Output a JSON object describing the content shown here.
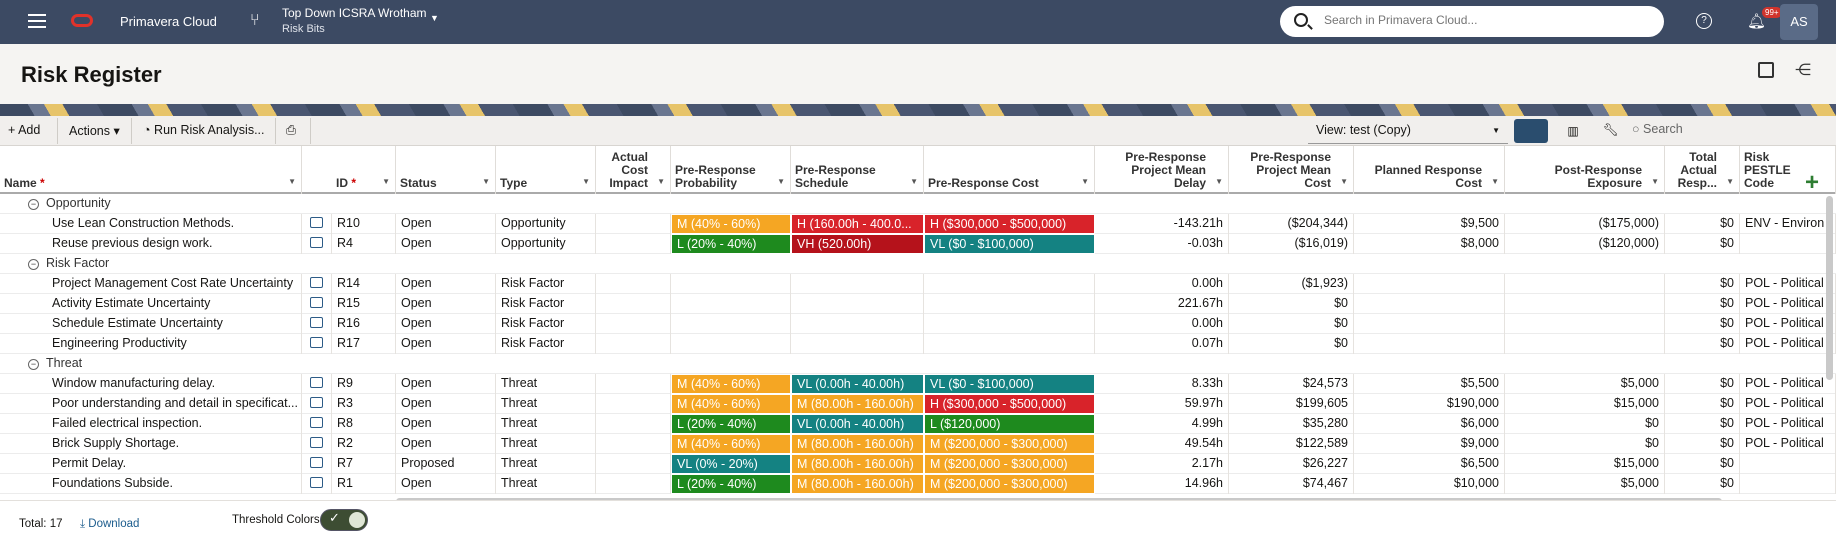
{
  "topbar": {
    "app_name": "Primavera Cloud",
    "project_title": "Top Down ICSRA Wrotham",
    "project_subtitle": "Risk Bits",
    "search_placeholder": "Search in Primavera Cloud...",
    "notification_count": "99+",
    "user_initials": "AS"
  },
  "page": {
    "title": "Risk Register"
  },
  "toolbar": {
    "add_label": "Add",
    "actions_label": "Actions",
    "run_label": "Run Risk Analysis...",
    "view_label": "View: test (Copy)",
    "search_placeholder": "Search"
  },
  "columns": [
    {
      "key": "name",
      "label": "Name",
      "required": true
    },
    {
      "key": "id",
      "label": "ID",
      "required": true
    },
    {
      "key": "status",
      "label": "Status"
    },
    {
      "key": "type",
      "label": "Type"
    },
    {
      "key": "aci",
      "label": "Actual Cost Impact"
    },
    {
      "key": "prp",
      "label": "Pre-Response Probability"
    },
    {
      "key": "prs",
      "label": "Pre-Response Schedule"
    },
    {
      "key": "prc",
      "label": "Pre-Response Cost"
    },
    {
      "key": "pmd",
      "label": "Pre-Response Project Mean Delay"
    },
    {
      "key": "pmc",
      "label": "Pre-Response Project Mean Cost"
    },
    {
      "key": "prcost",
      "label": "Planned Response Cost"
    },
    {
      "key": "poe",
      "label": "Post-Response Exposure"
    },
    {
      "key": "tar",
      "label": "Total Actual Resp..."
    },
    {
      "key": "pestle",
      "label": "Risk PESTLE Code"
    }
  ],
  "threshold_colors": {
    "H": "#d8232a",
    "VH": "#b5121b",
    "M": "#f5a623",
    "L": "#1e8a1e",
    "VL": "#148282"
  },
  "groups": [
    {
      "label": "Opportunity",
      "rows": [
        {
          "name": "Use Lean Construction Methods.",
          "id": "R10",
          "status": "Open",
          "type": "Opportunity",
          "aci": "",
          "prp": "M (40% - 60%)",
          "prp_level": "M",
          "prs": "H (160.00h - 400.0...",
          "prs_level": "H",
          "prc": "H ($300,000 - $500,000)",
          "prc_level": "H",
          "pmd": "-143.21h",
          "pmc": "($204,344)",
          "prcost": "$9,500",
          "poe": "($175,000)",
          "tar": "$0",
          "pestle": "ENV - Environ"
        },
        {
          "name": "Reuse previous design work.",
          "id": "R4",
          "status": "Open",
          "type": "Opportunity",
          "aci": "",
          "prp": "L (20% - 40%)",
          "prp_level": "L",
          "prs": "VH (520.00h)",
          "prs_level": "VH",
          "prc": "VL ($0 - $100,000)",
          "prc_level": "VL",
          "pmd": "-0.03h",
          "pmc": "($16,019)",
          "prcost": "$8,000",
          "poe": "($120,000)",
          "tar": "$0",
          "pestle": ""
        }
      ]
    },
    {
      "label": "Risk Factor",
      "rows": [
        {
          "name": "Project Management Cost Rate Uncertainty",
          "id": "R14",
          "status": "Open",
          "type": "Risk Factor",
          "aci": "",
          "prp": "",
          "prp_level": "",
          "prs": "",
          "prs_level": "",
          "prc": "",
          "prc_level": "",
          "pmd": "0.00h",
          "pmc": "($1,923)",
          "prcost": "",
          "poe": "",
          "tar": "$0",
          "pestle": "POL - Political"
        },
        {
          "name": "Activity Estimate Uncertainty",
          "id": "R15",
          "status": "Open",
          "type": "Risk Factor",
          "aci": "",
          "prp": "",
          "prp_level": "",
          "prs": "",
          "prs_level": "",
          "prc": "",
          "prc_level": "",
          "pmd": "221.67h",
          "pmc": "$0",
          "prcost": "",
          "poe": "",
          "tar": "$0",
          "pestle": "POL - Political"
        },
        {
          "name": "Schedule Estimate Uncertainty",
          "id": "R16",
          "status": "Open",
          "type": "Risk Factor",
          "aci": "",
          "prp": "",
          "prp_level": "",
          "prs": "",
          "prs_level": "",
          "prc": "",
          "prc_level": "",
          "pmd": "0.00h",
          "pmc": "$0",
          "prcost": "",
          "poe": "",
          "tar": "$0",
          "pestle": "POL - Political"
        },
        {
          "name": "Engineering Productivity",
          "id": "R17",
          "status": "Open",
          "type": "Risk Factor",
          "aci": "",
          "prp": "",
          "prp_level": "",
          "prs": "",
          "prs_level": "",
          "prc": "",
          "prc_level": "",
          "pmd": "0.07h",
          "pmc": "$0",
          "prcost": "",
          "poe": "",
          "tar": "$0",
          "pestle": "POL - Political"
        }
      ]
    },
    {
      "label": "Threat",
      "rows": [
        {
          "name": "Window manufacturing delay.",
          "id": "R9",
          "status": "Open",
          "type": "Threat",
          "aci": "",
          "prp": "M (40% - 60%)",
          "prp_level": "M",
          "prs": "VL (0.00h - 40.00h)",
          "prs_level": "VL",
          "prc": "VL ($0 - $100,000)",
          "prc_level": "VL",
          "pmd": "8.33h",
          "pmc": "$24,573",
          "prcost": "$5,500",
          "poe": "$5,000",
          "tar": "$0",
          "pestle": "POL - Political"
        },
        {
          "name": "Poor understanding and detail in specificat...",
          "id": "R3",
          "status": "Open",
          "type": "Threat",
          "aci": "",
          "prp": "M (40% - 60%)",
          "prp_level": "M",
          "prs": "M (80.00h - 160.00h)",
          "prs_level": "M",
          "prc": "H ($300,000 - $500,000)",
          "prc_level": "H",
          "pmd": "59.97h",
          "pmc": "$199,605",
          "prcost": "$190,000",
          "poe": "$15,000",
          "tar": "$0",
          "pestle": "POL - Political"
        },
        {
          "name": "Failed electrical inspection.",
          "id": "R8",
          "status": "Open",
          "type": "Threat",
          "aci": "",
          "prp": "L (20% - 40%)",
          "prp_level": "L",
          "prs": "VL (0.00h - 40.00h)",
          "prs_level": "VL",
          "prc": "L ($120,000)",
          "prc_level": "L",
          "pmd": "4.99h",
          "pmc": "$35,280",
          "prcost": "$6,000",
          "poe": "$0",
          "tar": "$0",
          "pestle": "POL - Political"
        },
        {
          "name": "Brick Supply Shortage.",
          "id": "R2",
          "status": "Open",
          "type": "Threat",
          "aci": "",
          "prp": "M (40% - 60%)",
          "prp_level": "M",
          "prs": "M (80.00h - 160.00h)",
          "prs_level": "M",
          "prc": "M ($200,000 - $300,000)",
          "prc_level": "M",
          "pmd": "49.54h",
          "pmc": "$122,589",
          "prcost": "$9,000",
          "poe": "$0",
          "tar": "$0",
          "pestle": "POL - Political"
        },
        {
          "name": "Permit Delay.",
          "id": "R7",
          "status": "Proposed",
          "type": "Threat",
          "aci": "",
          "prp": "VL (0% - 20%)",
          "prp_level": "VL",
          "prs": "M (80.00h - 160.00h)",
          "prs_level": "M",
          "prc": "M ($200,000 - $300,000)",
          "prc_level": "M",
          "pmd": "2.17h",
          "pmc": "$26,227",
          "prcost": "$6,500",
          "poe": "$15,000",
          "tar": "$0",
          "pestle": ""
        },
        {
          "name": "Foundations Subside.",
          "id": "R1",
          "status": "Open",
          "type": "Threat",
          "aci": "",
          "prp": "L (20% - 40%)",
          "prp_level": "L",
          "prs": "M (80.00h - 160.00h)",
          "prs_level": "M",
          "prc": "M ($200,000 - $300,000)",
          "prc_level": "M",
          "pmd": "14.96h",
          "pmc": "$74,467",
          "prcost": "$10,000",
          "poe": "$5,000",
          "tar": "$0",
          "pestle": ""
        }
      ]
    }
  ],
  "footer": {
    "total_label": "Total:",
    "total_value": "17",
    "download_label": "Download",
    "threshold_label": "Threshold Colors"
  }
}
